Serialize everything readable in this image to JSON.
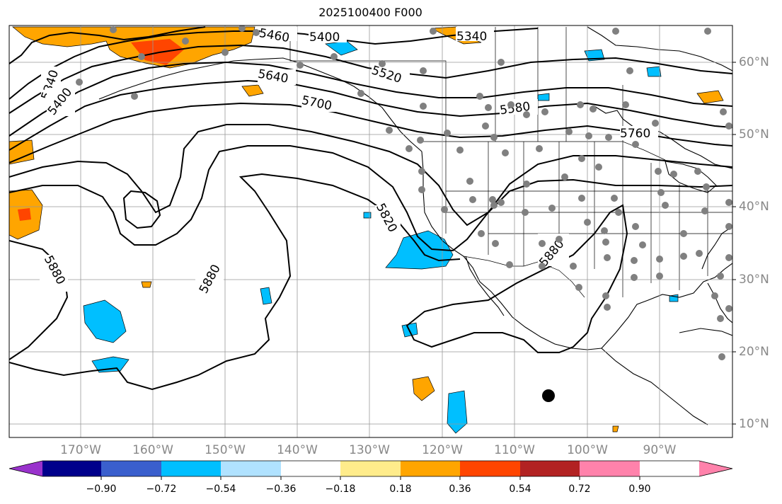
{
  "title": "2025100400 F000",
  "map": {
    "longitude_labels": [
      "170°W",
      "160°W",
      "150°W",
      "140°W",
      "130°W",
      "120°W",
      "110°W",
      "100°W",
      "90°W"
    ],
    "latitude_labels": [
      "60°N",
      "50°N",
      "40°N",
      "30°N",
      "20°N",
      "10°N"
    ],
    "contour_labels": [
      "5340",
      "5400",
      "5460",
      "5400",
      "5340",
      "5520",
      "5580",
      "5640",
      "5700",
      "5760",
      "5820",
      "5880",
      "5880",
      "5880"
    ],
    "contour_color": "#000000",
    "land_color": "#000000",
    "marker_color": "#808080",
    "cyclone_marker_color": "#000000"
  },
  "colorbar": {
    "tick_labels": [
      "−0.90",
      "−0.72",
      "−0.54",
      "−0.36",
      "−0.18",
      "0.18",
      "0.36",
      "0.54",
      "0.72",
      "0.90"
    ],
    "colors": [
      "#9932cc",
      "#00008b",
      "#3a5fcd",
      "#00bfff",
      "#b0e2ff",
      "#ffffff",
      "#ffec8b",
      "#ffa500",
      "#ff4500",
      "#b22222",
      "#ff82ab"
    ]
  }
}
